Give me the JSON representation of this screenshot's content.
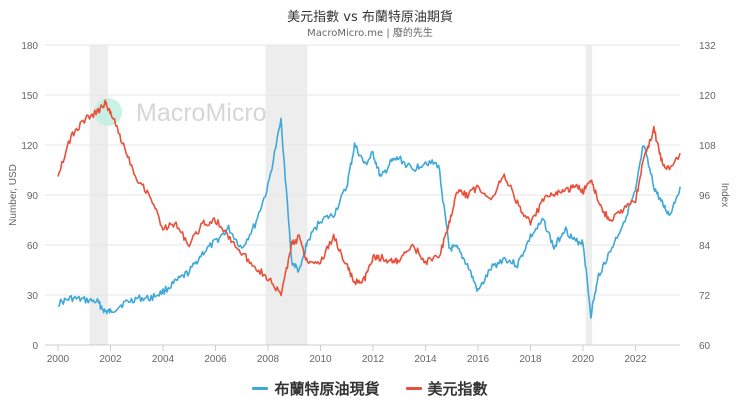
{
  "header": {
    "title": "美元指數 vs 布蘭特原油期貨",
    "subtitle": "MacroMicro.me | 廢的先生"
  },
  "watermark": "MacroMicro",
  "legend": [
    {
      "label": "布蘭特原油現貨",
      "color": "#3ea8d8"
    },
    {
      "label": "美元指數",
      "color": "#e8503a"
    }
  ],
  "chart_data": {
    "type": "line",
    "title": "美元指數 vs 布蘭特原油期貨",
    "subtitle": "MacroMicro.me | 廢的先生",
    "xlabel": "",
    "ylabel_left": "Number, USD",
    "ylabel_right": "Index",
    "ylim_left": [
      0,
      180
    ],
    "ylim_right": [
      60,
      132
    ],
    "yticks_left": [
      0,
      30,
      60,
      90,
      120,
      150,
      180
    ],
    "yticks_right": [
      60,
      72,
      84,
      96,
      108,
      120,
      132
    ],
    "xticks": [
      "2000",
      "2002",
      "2004",
      "2006",
      "2008",
      "2010",
      "2012",
      "2014",
      "2016",
      "2018",
      "2020",
      "2022"
    ],
    "grid": true,
    "legend_position": "bottom",
    "shaded_periods": [
      [
        2001.2,
        2001.9
      ],
      [
        2007.9,
        2009.5
      ],
      [
        2020.1,
        2020.35
      ]
    ],
    "x": [
      2000.0,
      2000.5,
      2001.0,
      2001.5,
      2001.8,
      2002.0,
      2002.5,
      2003.0,
      2003.5,
      2004.0,
      2004.5,
      2005.0,
      2005.5,
      2006.0,
      2006.5,
      2007.0,
      2007.5,
      2008.0,
      2008.5,
      2008.9,
      2009.2,
      2009.5,
      2010.0,
      2010.5,
      2011.0,
      2011.3,
      2011.7,
      2012.0,
      2012.3,
      2012.7,
      2013.0,
      2013.5,
      2014.0,
      2014.5,
      2014.9,
      2015.2,
      2015.6,
      2016.0,
      2016.5,
      2017.0,
      2017.5,
      2018.0,
      2018.5,
      2018.9,
      2019.3,
      2019.7,
      2020.0,
      2020.3,
      2020.6,
      2021.0,
      2021.5,
      2022.0,
      2022.3,
      2022.7,
      2023.0,
      2023.3,
      2023.7
    ],
    "series": [
      {
        "name": "布蘭特原油現貨",
        "axis": "left",
        "unit": "USD",
        "values": [
          25,
          28,
          27,
          26,
          20,
          20,
          25,
          28,
          28,
          32,
          38,
          44,
          55,
          62,
          70,
          58,
          72,
          95,
          135,
          50,
          44,
          62,
          75,
          78,
          95,
          120,
          108,
          115,
          100,
          110,
          112,
          105,
          110,
          108,
          58,
          58,
          48,
          32,
          46,
          52,
          48,
          65,
          75,
          58,
          70,
          62,
          62,
          18,
          42,
          55,
          72,
          92,
          120,
          95,
          85,
          78,
          95
        ]
      },
      {
        "name": "美元指數",
        "axis": "right",
        "unit": "Index",
        "values": [
          101,
          110,
          114,
          116,
          118,
          116,
          108,
          100,
          96,
          88,
          89,
          84,
          89,
          90,
          86,
          82,
          79,
          76,
          72,
          84,
          86,
          80,
          80,
          86,
          79,
          75,
          76,
          81,
          81,
          80,
          80,
          84,
          80,
          81,
          89,
          97,
          96,
          98,
          95,
          101,
          94,
          89,
          95,
          96,
          97,
          98,
          97,
          100,
          94,
          90,
          92,
          95,
          104,
          112,
          104,
          102,
          106
        ]
      }
    ]
  },
  "axes": {
    "left": {
      "label": "Number, USD",
      "ticks": [
        "0",
        "30",
        "60",
        "90",
        "120",
        "150",
        "180"
      ]
    },
    "right": {
      "label": "Index",
      "ticks": [
        "60",
        "72",
        "84",
        "96",
        "108",
        "120",
        "132"
      ]
    },
    "x": {
      "ticks": [
        "2000",
        "2002",
        "2004",
        "2006",
        "2008",
        "2010",
        "2012",
        "2014",
        "2016",
        "2018",
        "2020",
        "2022"
      ]
    }
  }
}
